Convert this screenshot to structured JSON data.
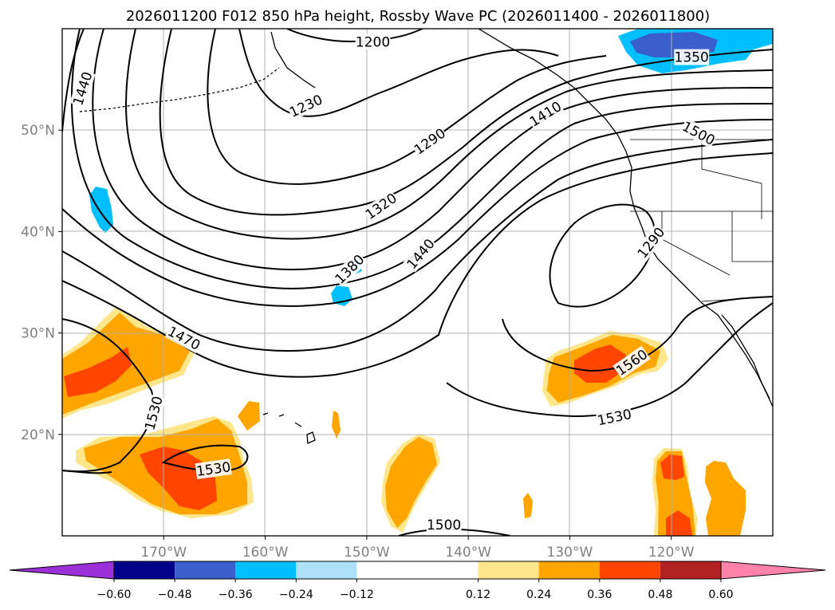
{
  "chart_data": {
    "type": "contour-map",
    "title": "2026011200 F012 850 hPa height, Rossby Wave PC (2026011400 - 2026011800)",
    "x_axis": {
      "range_lon": [
        -180,
        -110
      ],
      "ticks": [
        {
          "lon": -170,
          "label": "170°W"
        },
        {
          "lon": -160,
          "label": "160°W"
        },
        {
          "lon": -150,
          "label": "150°W"
        },
        {
          "lon": -140,
          "label": "140°W"
        },
        {
          "lon": -130,
          "label": "130°W"
        },
        {
          "lon": -120,
          "label": "120°W"
        }
      ]
    },
    "y_axis": {
      "range_lat": [
        10,
        60
      ],
      "ticks": [
        {
          "lat": 20,
          "label": "20°N"
        },
        {
          "lat": 30,
          "label": "30°N"
        },
        {
          "lat": 40,
          "label": "40°N"
        },
        {
          "lat": 50,
          "label": "50°N"
        }
      ]
    },
    "grid": true,
    "contour_labels": [
      {
        "text": "1440",
        "lon": -178,
        "lat": 54.1,
        "angle": -72
      },
      {
        "text": "1200",
        "lon": -149.4,
        "lat": 58.7,
        "angle": 0
      },
      {
        "text": "1230",
        "lon": -156,
        "lat": 52.4,
        "angle": -25
      },
      {
        "text": "1290",
        "lon": -143.8,
        "lat": 48.9,
        "angle": -35
      },
      {
        "text": "1320",
        "lon": -148.6,
        "lat": 42.5,
        "angle": -35
      },
      {
        "text": "1380",
        "lon": -151.7,
        "lat": 36.3,
        "angle": -45
      },
      {
        "text": "1410",
        "lon": -132.4,
        "lat": 51.6,
        "angle": -32
      },
      {
        "text": "1440",
        "lon": -144.7,
        "lat": 37.8,
        "angle": -50
      },
      {
        "text": "1350",
        "lon": -118,
        "lat": 57.2,
        "angle": 0
      },
      {
        "text": "1500",
        "lon": -117.3,
        "lat": 49.7,
        "angle": 28
      },
      {
        "text": "1290",
        "lon": -122,
        "lat": 38.9,
        "angle": -52
      },
      {
        "text": "1470",
        "lon": -168,
        "lat": 29.5,
        "angle": 28
      },
      {
        "text": "1530",
        "lon": -171,
        "lat": 22.1,
        "angle": -75
      },
      {
        "text": "1530",
        "lon": -165.1,
        "lat": 16.6,
        "angle": -8
      },
      {
        "text": "1560",
        "lon": -123.9,
        "lat": 27.1,
        "angle": -35
      },
      {
        "text": "1530",
        "lon": -125.6,
        "lat": 21.7,
        "angle": -12
      },
      {
        "text": "1500",
        "lon": -142.4,
        "lat": 11.1,
        "angle": 0
      }
    ],
    "colorbar": {
      "extend": "both",
      "bounds": [
        -0.72,
        -0.6,
        -0.48,
        -0.36,
        -0.24,
        -0.12,
        0.12,
        0.24,
        0.36,
        0.48,
        0.6,
        0.72
      ],
      "colors": [
        "#9b30d9",
        "#00008b",
        "#3a5fcd",
        "#00bfff",
        "#ade1fa",
        "#ffffff",
        "#ffe68a",
        "#ffa500",
        "#ff4500",
        "#b22222",
        "#ff82ab"
      ],
      "tick_values": [
        -0.6,
        -0.48,
        -0.36,
        -0.24,
        -0.12,
        0.12,
        0.24,
        0.36,
        0.48,
        0.6
      ],
      "tick_labels": [
        "−0.60",
        "−0.48",
        "−0.36",
        "−0.24",
        "−0.12",
        "0.12",
        "0.24",
        "0.36",
        "0.48",
        "0.60"
      ]
    }
  }
}
